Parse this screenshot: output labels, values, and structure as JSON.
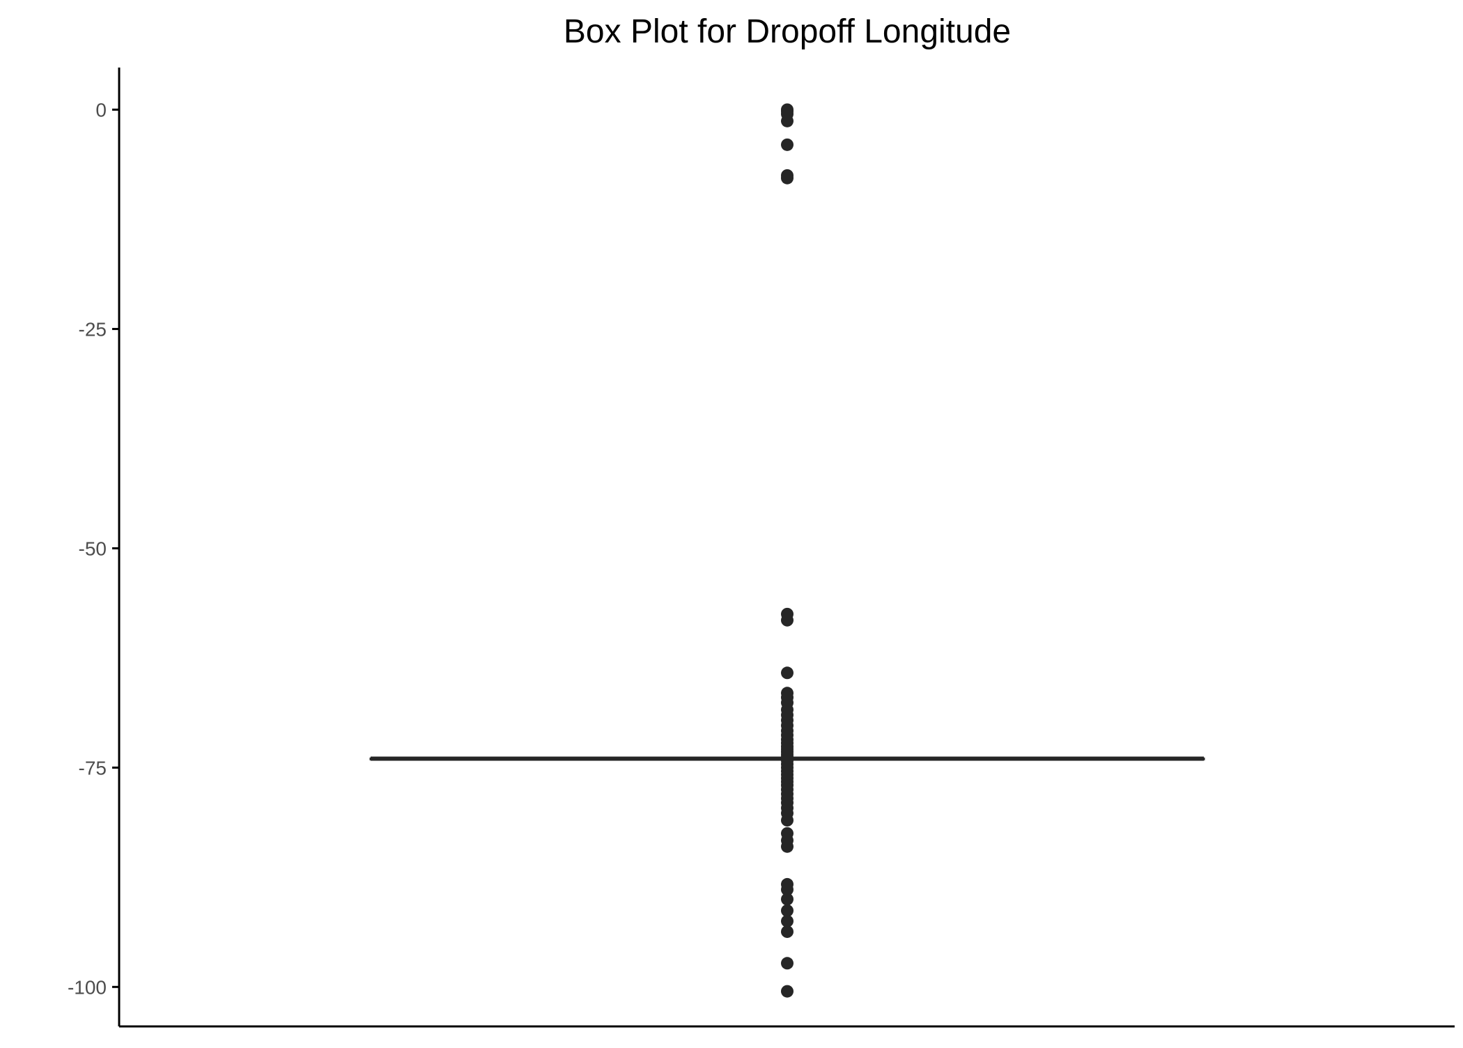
{
  "chart_data": {
    "type": "box",
    "title": "Box Plot for Dropoff Longitude",
    "xlabel": "",
    "ylabel": "",
    "ylim": [
      -104.5,
      4.8
    ],
    "y_ticks": [
      0,
      -25,
      -50,
      -75,
      -100
    ],
    "y_tick_labels": [
      "0",
      "-25",
      "-50",
      "-75",
      "-100"
    ],
    "grid": false,
    "legend": "none",
    "box": {
      "median": -73.98,
      "q1": -73.99,
      "q3": -73.97,
      "whisker_low": -74.02,
      "whisker_high": -73.94
    },
    "outliers": [
      0.0,
      -0.2,
      -0.5,
      -1.3,
      -4.0,
      -7.5,
      -7.8,
      -57.5,
      -58.2,
      -64.2,
      -66.5,
      -67.0,
      -67.6,
      -68.4,
      -69.0,
      -69.6,
      -70.2,
      -70.8,
      -71.3,
      -71.8,
      -72.2,
      -72.6,
      -72.9,
      -73.2,
      -73.5,
      -73.8,
      -74.2,
      -74.6,
      -75.0,
      -75.4,
      -75.8,
      -76.2,
      -76.6,
      -77.0,
      -77.5,
      -78.0,
      -78.5,
      -79.0,
      -79.6,
      -80.2,
      -81.0,
      -82.5,
      -83.3,
      -84.0,
      -88.3,
      -88.9,
      -90.0,
      -91.3,
      -92.5,
      -93.7,
      -97.3,
      -100.5
    ],
    "colors": {
      "points": "#262626",
      "box": "#262626",
      "axis": "#000000",
      "tick_label": "#4d4d4d"
    }
  }
}
